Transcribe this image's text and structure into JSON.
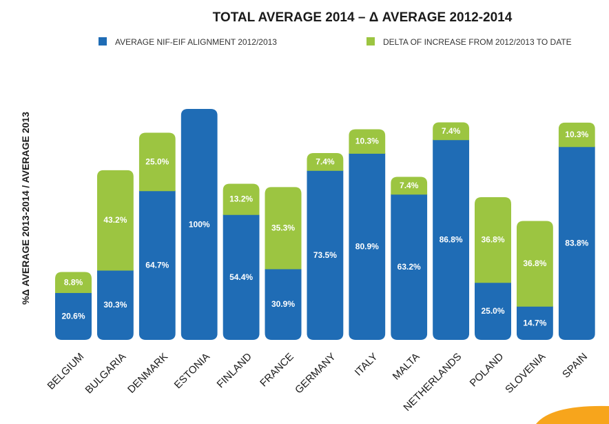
{
  "chart_data": {
    "type": "bar",
    "stacked": true,
    "title": "TOTAL AVERAGE 2014 – Δ AVERAGE 2012-2014",
    "ylabel": "%Δ AVERAGE 2013-2014 / AVERAGE 2013",
    "xlabel": "",
    "ylim": [
      0,
      100
    ],
    "grid": false,
    "legend_position": "top",
    "categories": [
      "BELGIUM",
      "BULGARIA",
      "DENMARK",
      "ESTONIA",
      "FINLAND",
      "FRANCE",
      "GERMANY",
      "ITALY",
      "MALTA",
      "NETHERLANDS",
      "POLAND",
      "SLOVENIA",
      "SPAIN"
    ],
    "series": [
      {
        "name": "AVERAGE NIF-EIF ALIGNMENT 2012/2013",
        "color": "#1f6cb5",
        "values": [
          20.6,
          30.3,
          64.7,
          100,
          54.4,
          30.9,
          73.5,
          80.9,
          63.2,
          86.8,
          25.0,
          14.7,
          83.8
        ],
        "labels": [
          "20.6%",
          "30.3%",
          "64.7%",
          "100%",
          "54.4%",
          "30.9%",
          "73.5%",
          "80.9%",
          "63.2%",
          "86.8%",
          "25.0%",
          "14.7%",
          "83.8%"
        ]
      },
      {
        "name": "DELTA OF INCREASE FROM 2012/2013 TO DATE",
        "color": "#9cc541",
        "values": [
          8.8,
          43.2,
          25.0,
          null,
          13.2,
          35.3,
          7.4,
          10.3,
          7.4,
          7.4,
          36.8,
          36.8,
          10.3
        ],
        "labels": [
          "8.8%",
          "43.2%",
          "25.0%",
          "",
          "13.2%",
          "35.3%",
          "7.4%",
          "10.3%",
          "7.4%",
          "7.4%",
          "36.8%",
          "36.8%",
          "10.3%"
        ]
      }
    ]
  },
  "colors": {
    "blue": "#1f6cb5",
    "green": "#9cc541",
    "accent_orange": "#f7a51c"
  }
}
